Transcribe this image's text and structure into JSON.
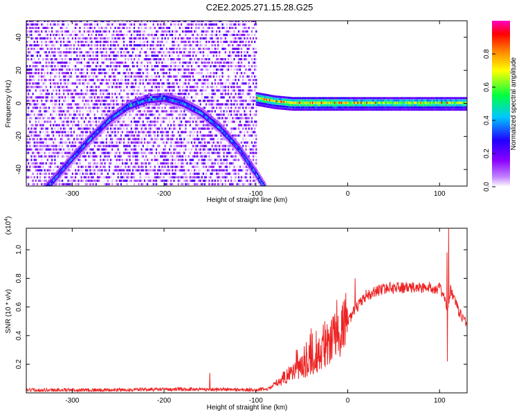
{
  "figure": {
    "title": "C2E2.2025.271.15.28.G25"
  },
  "chart_data": [
    {
      "type": "heatmap",
      "xlabel": "Height of straight line (km)",
      "ylabel": "Frequency (Hz)",
      "xlim": [
        -350,
        130
      ],
      "ylim": [
        -50,
        50
      ],
      "xticks": [
        -300,
        -200,
        -100,
        0,
        100
      ],
      "yticks": [
        -40,
        -20,
        0,
        20,
        40
      ],
      "xtick_labels": [
        "-300",
        "-200",
        "-100",
        "0",
        "100"
      ],
      "ytick_labels": [
        "-40",
        "-20",
        "0",
        "20",
        "40"
      ],
      "colorbar": {
        "label": "Normalized spectral amplitude",
        "range": [
          0,
          1
        ],
        "ticks": [
          0.0,
          0.2,
          0.4,
          0.6,
          0.8
        ],
        "tick_labels": [
          "0.0",
          "0.2",
          "0.4",
          "0.6",
          "0.8"
        ],
        "colors": [
          "#ffffff",
          "#8a00ff",
          "#2000ff",
          "#00c8ff",
          "#00ff00",
          "#ffff00",
          "#ff8000",
          "#ff0000",
          "#ff00c0"
        ]
      },
      "noise_region": {
        "x_range": [
          -350,
          -100
        ],
        "f_range": [
          -50,
          50
        ]
      },
      "features": [
        {
          "name": "rising-track",
          "points": [
            [
              -340,
              -58
            ],
            [
              -320,
              -46
            ],
            [
              -300,
              -33
            ],
            [
              -280,
              -21
            ],
            [
              -260,
              -10
            ],
            [
              -240,
              -2
            ],
            [
              -220,
              2
            ],
            [
              -200,
              3
            ],
            [
              -180,
              0
            ],
            [
              -160,
              -6
            ],
            [
              -140,
              -15
            ],
            [
              -120,
              -27
            ],
            [
              -100,
              -43
            ],
            [
              -90,
              -52
            ]
          ]
        },
        {
          "name": "carrier-line",
          "points": [
            [
              -100,
              3
            ],
            [
              -90,
              2
            ],
            [
              -80,
              1
            ],
            [
              -60,
              0
            ],
            [
              -40,
              0
            ],
            [
              -20,
              0
            ],
            [
              0,
              0
            ],
            [
              40,
              0
            ],
            [
              80,
              0
            ],
            [
              130,
              0
            ]
          ]
        }
      ]
    },
    {
      "type": "line",
      "xlabel": "Height of straight line (km)",
      "ylabel": "SNR (10 * v/v)",
      "y_scale_label": "(x10",
      "y_scale_exponent": "4",
      "xlim": [
        -350,
        130
      ],
      "ylim": [
        0,
        1.15
      ],
      "xticks": [
        -300,
        -200,
        -100,
        0,
        100
      ],
      "yticks": [
        0.2,
        0.4,
        0.6,
        0.8,
        1.0
      ],
      "xtick_labels": [
        "-300",
        "-200",
        "-100",
        "0",
        "100"
      ],
      "ytick_labels": [
        "0.2",
        "0.4",
        "0.6",
        "0.8",
        "1.0"
      ],
      "color": "#ee2222",
      "series": [
        {
          "name": "SNR",
          "x": [
            -350,
            -300,
            -250,
            -200,
            -150,
            -100,
            -85,
            -75,
            -60,
            -45,
            -30,
            -20,
            -10,
            0,
            10,
            20,
            30,
            40,
            50,
            60,
            70,
            80,
            90,
            100,
            105,
            108,
            112,
            120,
            130
          ],
          "y": [
            0.02,
            0.02,
            0.02,
            0.025,
            0.025,
            0.02,
            0.03,
            0.08,
            0.15,
            0.2,
            0.27,
            0.34,
            0.42,
            0.5,
            0.6,
            0.67,
            0.71,
            0.73,
            0.735,
            0.735,
            0.735,
            0.735,
            0.735,
            0.73,
            0.68,
            0.55,
            0.72,
            0.58,
            0.48
          ],
          "spikes": [
            [
              -150,
              0.14
            ],
            [
              -55,
              0.3
            ],
            [
              -40,
              0.45
            ],
            [
              -25,
              0.5
            ],
            [
              -12,
              0.65
            ],
            [
              8,
              0.8
            ],
            [
              20,
              0.72
            ],
            [
              35,
              0.75
            ],
            [
              108,
              0.98
            ],
            [
              108.5,
              0.22
            ],
            [
              110,
              1.15
            ],
            [
              118,
              0.65
            ]
          ]
        }
      ]
    }
  ]
}
